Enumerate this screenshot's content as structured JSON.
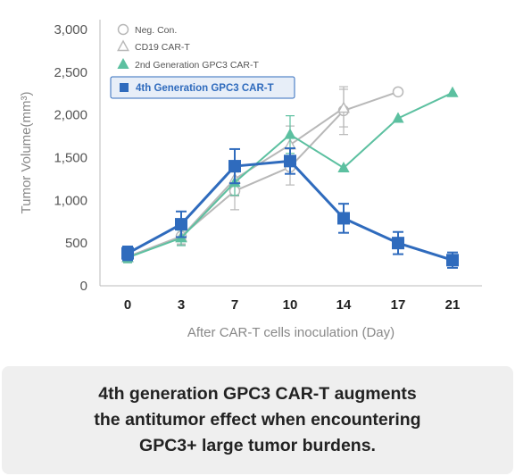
{
  "chart_data": {
    "type": "line",
    "title": "",
    "xlabel": "After CAR-T cells inoculation (Day)",
    "ylabel": "Tumor Volume(mm³)",
    "x": [
      "0",
      "3",
      "7",
      "10",
      "14",
      "17",
      "21"
    ],
    "yticks": [
      "0",
      "500",
      "1,000",
      "1,500",
      "2,000",
      "2,500",
      "3,000"
    ],
    "ylim": [
      0,
      3000
    ],
    "grid": false,
    "legend_position": "top-left",
    "series": [
      {
        "name": "Neg. Con.",
        "marker": "circle-open",
        "color": "#b8b8b8",
        "points": [
          [
            0,
            340
          ],
          [
            3,
            580
          ],
          [
            7,
            1110
          ],
          [
            10,
            1390
          ],
          [
            14,
            2050
          ],
          [
            17,
            2270
          ]
        ],
        "errors": [
          [
            0,
            60
          ],
          [
            3,
            90
          ],
          [
            7,
            220
          ],
          [
            10,
            210
          ],
          [
            14,
            280
          ],
          [
            17,
            0
          ]
        ]
      },
      {
        "name": "CD19 CAR-T",
        "marker": "triangle-open",
        "color": "#b8b8b8",
        "points": [
          [
            0,
            330
          ],
          [
            3,
            570
          ],
          [
            7,
            1250
          ],
          [
            10,
            1650
          ],
          [
            14,
            2080
          ]
        ],
        "errors": [
          [
            0,
            60
          ],
          [
            3,
            90
          ],
          [
            7,
            200
          ],
          [
            10,
            220
          ],
          [
            14,
            220
          ]
        ]
      },
      {
        "name": "2nd Generation GPC3 CAR-T",
        "marker": "triangle-filled",
        "color": "#5cc0a0",
        "points": [
          [
            0,
            330
          ],
          [
            3,
            560
          ],
          [
            7,
            1210
          ],
          [
            10,
            1770
          ],
          [
            14,
            1380
          ],
          [
            17,
            1960
          ],
          [
            21,
            2260
          ]
        ],
        "errors": [
          [
            0,
            60
          ],
          [
            3,
            90
          ],
          [
            7,
            150
          ],
          [
            10,
            220
          ],
          [
            14,
            0
          ],
          [
            17,
            0
          ],
          [
            21,
            0
          ]
        ]
      },
      {
        "name": "4th Generation GPC3 CAR-T",
        "marker": "square-filled",
        "color": "#2f6bbd",
        "highlight": true,
        "points": [
          [
            0,
            380
          ],
          [
            3,
            720
          ],
          [
            7,
            1400
          ],
          [
            10,
            1460
          ],
          [
            14,
            790
          ],
          [
            17,
            500
          ],
          [
            21,
            300
          ]
        ],
        "errors": [
          [
            0,
            80
          ],
          [
            3,
            150
          ],
          [
            7,
            200
          ],
          [
            10,
            150
          ],
          [
            14,
            170
          ],
          [
            17,
            130
          ],
          [
            21,
            90
          ]
        ]
      }
    ]
  },
  "caption": {
    "line1": "4th generation GPC3 CAR-T augments",
    "line2": "the antitumor effect when encountering",
    "line3": "GPC3+ large tumor burdens."
  }
}
